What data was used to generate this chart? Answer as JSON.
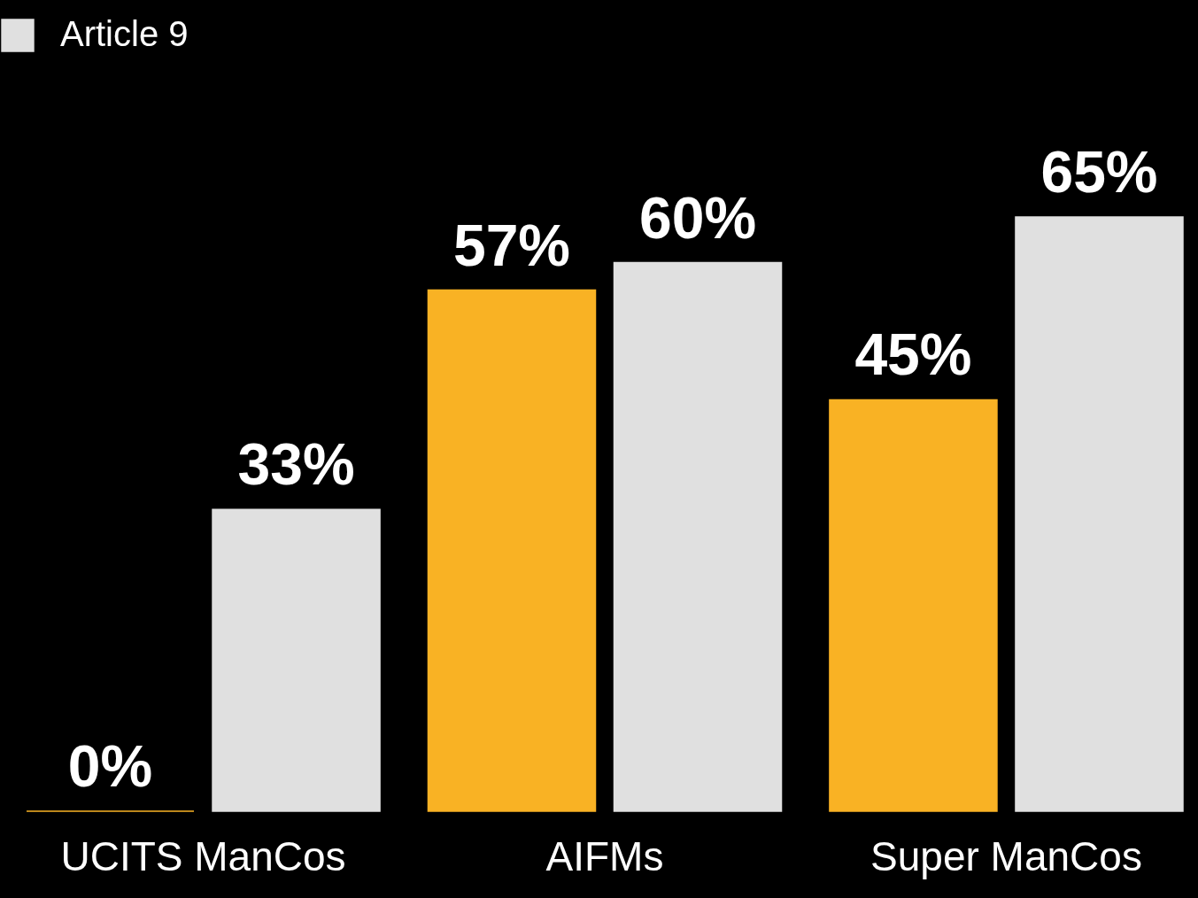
{
  "chart_data": {
    "type": "bar",
    "categories": [
      "UCITS ManCos",
      "AIFMs",
      "Super ManCos"
    ],
    "series": [
      {
        "color": "#f9b224",
        "values": [
          0,
          57,
          45
        ],
        "value_labels": [
          "0%",
          "57%",
          "45%"
        ]
      },
      {
        "name": "Article 9",
        "color": "#e0e0e0",
        "values": [
          33,
          60,
          65
        ],
        "value_labels": [
          "33%",
          "60%",
          "65%"
        ]
      }
    ],
    "legend": "top left"
  }
}
